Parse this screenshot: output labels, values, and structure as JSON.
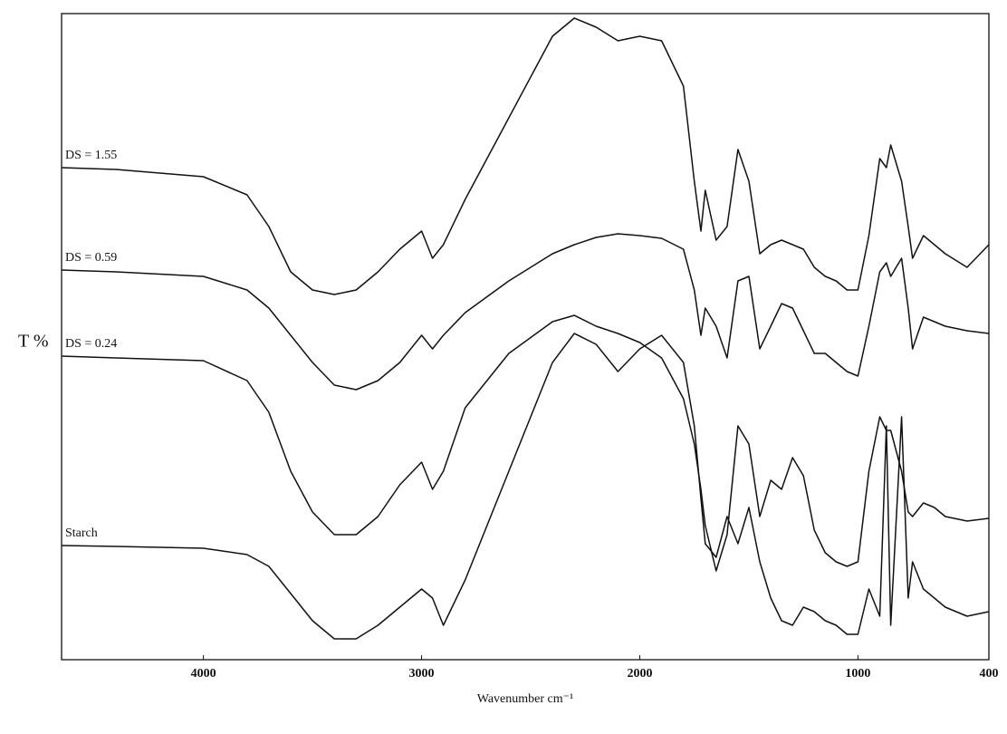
{
  "chart_data": {
    "type": "line",
    "y_label": "T %",
    "x_label": "Wavenumber cm⁻¹",
    "xlim": [
      4650,
      400
    ],
    "xticks": [
      4000,
      3000,
      2000,
      1000,
      400
    ],
    "ylim": [
      0,
      713
    ],
    "x": [
      4650,
      4400,
      4000,
      3800,
      3700,
      3600,
      3500,
      3400,
      3300,
      3200,
      3100,
      3000,
      2950,
      2900,
      2800,
      2600,
      2400,
      2300,
      2200,
      2100,
      2000,
      1900,
      1800,
      1750,
      1720,
      1700,
      1650,
      1600,
      1550,
      1500,
      1450,
      1400,
      1350,
      1300,
      1250,
      1200,
      1150,
      1100,
      1050,
      1000,
      950,
      900,
      870,
      850,
      800,
      770,
      750,
      700,
      650,
      600,
      500,
      400
    ],
    "series": [
      {
        "name": "DS = 1.55",
        "color": "#111111",
        "values": [
          543,
          541,
          533,
          513,
          478,
          428,
          408,
          403,
          408,
          428,
          453,
          473,
          443,
          458,
          508,
          598,
          688,
          708,
          698,
          683,
          688,
          683,
          633,
          528,
          473,
          518,
          463,
          478,
          563,
          528,
          448,
          458,
          463,
          458,
          453,
          433,
          423,
          418,
          408,
          408,
          468,
          553,
          543,
          568,
          528,
          478,
          443,
          468,
          458,
          448,
          433,
          458
        ]
      },
      {
        "name": "DS = 0.59",
        "color": "#111111",
        "values": [
          430,
          428,
          423,
          408,
          388,
          358,
          328,
          303,
          298,
          308,
          328,
          358,
          343,
          358,
          383,
          418,
          448,
          458,
          466,
          470,
          468,
          465,
          453,
          408,
          358,
          388,
          368,
          333,
          418,
          423,
          343,
          368,
          393,
          388,
          363,
          338,
          338,
          328,
          318,
          313,
          368,
          428,
          438,
          423,
          443,
          388,
          343,
          378,
          373,
          368,
          363,
          360
        ]
      },
      {
        "name": "DS = 0.24",
        "color": "#111111",
        "values": [
          335,
          333,
          330,
          308,
          273,
          208,
          163,
          138,
          138,
          158,
          193,
          218,
          188,
          208,
          278,
          338,
          373,
          380,
          368,
          360,
          350,
          333,
          288,
          238,
          188,
          148,
          98,
          138,
          258,
          238,
          158,
          198,
          188,
          223,
          203,
          143,
          118,
          108,
          103,
          108,
          208,
          268,
          253,
          253,
          208,
          163,
          158,
          173,
          168,
          158,
          153,
          156
        ]
      },
      {
        "name": "Starch",
        "color": "#111111",
        "values": [
          126,
          125,
          123,
          116,
          103,
          73,
          43,
          23,
          23,
          38,
          58,
          78,
          68,
          38,
          88,
          208,
          328,
          360,
          348,
          318,
          343,
          358,
          328,
          258,
          178,
          128,
          113,
          158,
          128,
          168,
          108,
          68,
          43,
          38,
          58,
          53,
          43,
          38,
          28,
          28,
          78,
          48,
          258,
          38,
          268,
          68,
          108,
          78,
          68,
          58,
          48,
          53
        ]
      }
    ]
  }
}
